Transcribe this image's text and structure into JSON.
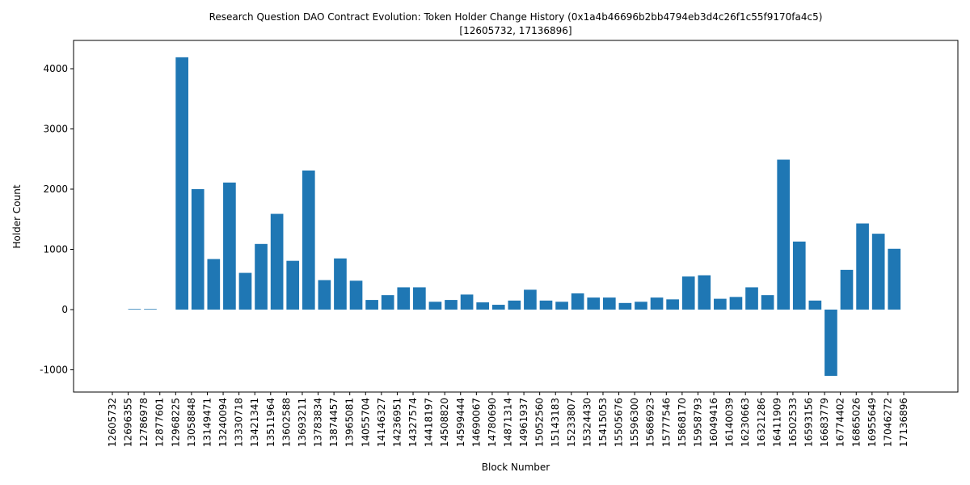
{
  "chart_data": {
    "type": "bar",
    "title": "Research Question DAO Contract Evolution: Token Holder Change History (0x1a4b46696b2bb4794eb3d4c26f1c55f9170fa4c5)",
    "subtitle": "[12605732, 17136896]",
    "x_label": "Block Number",
    "y_label": "Holder Count",
    "categories": [
      "12605732",
      "12696355",
      "12786978",
      "12877601",
      "12968225",
      "13058848",
      "13149471",
      "13240094",
      "13330718",
      "13421341",
      "13511964",
      "13602588",
      "13693211",
      "13783834",
      "13874457",
      "13965081",
      "14055704",
      "14146327",
      "14236951",
      "14327574",
      "14418197",
      "14508820",
      "14599444",
      "14690067",
      "14780690",
      "14871314",
      "14961937",
      "15052560",
      "15143183",
      "15233807",
      "15324430",
      "15415053",
      "15505676",
      "15596300",
      "15686923",
      "15777546",
      "15868170",
      "15958793",
      "16049416",
      "16140039",
      "16230663",
      "16321286",
      "16411909",
      "16502533",
      "16593156",
      "16683779",
      "16774402",
      "16865026",
      "16955649",
      "17046272",
      "17136896"
    ],
    "values": [
      0,
      10,
      10,
      0,
      4190,
      2000,
      840,
      2110,
      610,
      1090,
      1590,
      810,
      2310,
      490,
      850,
      480,
      160,
      240,
      370,
      370,
      130,
      160,
      250,
      120,
      80,
      150,
      330,
      150,
      130,
      270,
      200,
      200,
      110,
      130,
      200,
      170,
      550,
      570,
      180,
      210,
      370,
      240,
      2490,
      1130,
      150,
      -1100,
      660,
      1430,
      1260,
      1010,
      0
    ],
    "color": "#1f77b4",
    "ylim": [
      -1369,
      4470
    ],
    "yticks": [
      -1000,
      0,
      1000,
      2000,
      3000,
      4000
    ],
    "grid": false
  }
}
